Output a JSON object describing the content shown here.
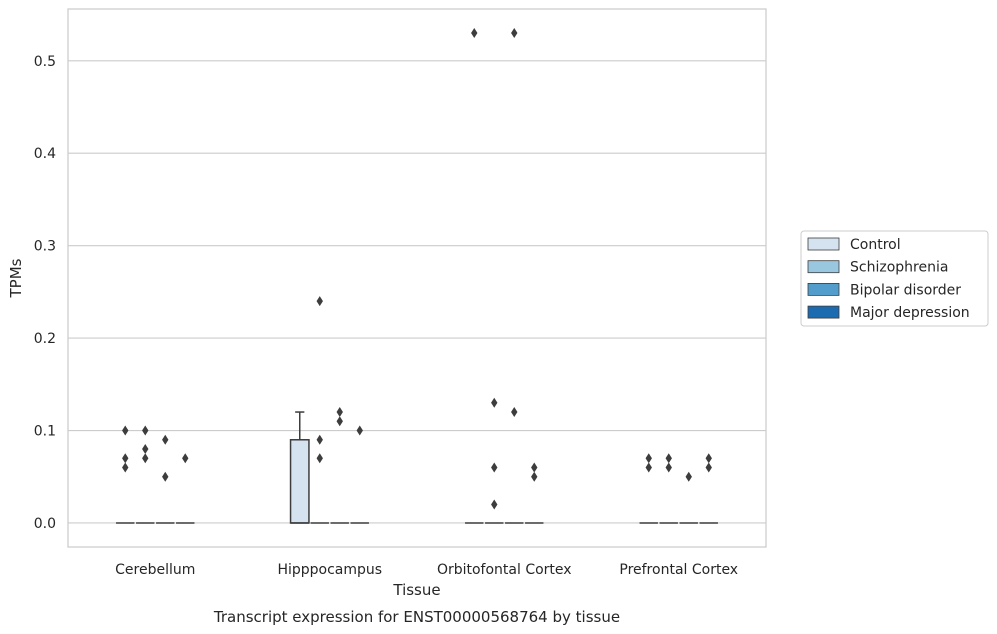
{
  "caption": "Transcript expression for ENST00000568764 by tissue",
  "chart_data": {
    "type": "box",
    "xlabel": "Tissue",
    "ylabel": "TPMs",
    "ylim": [
      -0.026,
      0.556
    ],
    "yticks": [
      0.0,
      0.1,
      0.2,
      0.3,
      0.4,
      0.5
    ],
    "ytick_labels": [
      "0.0",
      "0.1",
      "0.2",
      "0.3",
      "0.4",
      "0.5"
    ],
    "grid": true,
    "legend_position": "right",
    "categories": [
      "Cerebellum",
      "Hipppocampus",
      "Orbitofontal Cortex",
      "Prefrontal Cortex"
    ],
    "series": [
      {
        "name": "Control",
        "color": "#d5e3f1",
        "boxes": [
          {
            "category": "Cerebellum",
            "q1": 0,
            "median": 0,
            "q3": 0,
            "whisker_low": 0,
            "whisker_high": 0,
            "outliers": [
              0.06,
              0.07,
              0.1
            ]
          },
          {
            "category": "Hipppocampus",
            "q1": 0,
            "median": 0,
            "q3": 0.09,
            "whisker_low": 0,
            "whisker_high": 0.12,
            "outliers": []
          },
          {
            "category": "Orbitofontal Cortex",
            "q1": 0,
            "median": 0,
            "q3": 0,
            "whisker_low": 0,
            "whisker_high": 0,
            "outliers": [
              0.53
            ]
          },
          {
            "category": "Prefrontal Cortex",
            "q1": 0,
            "median": 0,
            "q3": 0,
            "whisker_low": 0,
            "whisker_high": 0,
            "outliers": [
              0.06,
              0.07
            ]
          }
        ]
      },
      {
        "name": "Schizophrenia",
        "color": "#9ac7e0",
        "boxes": [
          {
            "category": "Cerebellum",
            "q1": 0,
            "median": 0,
            "q3": 0,
            "whisker_low": 0,
            "whisker_high": 0,
            "outliers": [
              0.07,
              0.08,
              0.1
            ]
          },
          {
            "category": "Hipppocampus",
            "q1": 0,
            "median": 0,
            "q3": 0,
            "whisker_low": 0,
            "whisker_high": 0,
            "outliers": [
              0.07,
              0.09,
              0.24
            ]
          },
          {
            "category": "Orbitofontal Cortex",
            "q1": 0,
            "median": 0,
            "q3": 0,
            "whisker_low": 0,
            "whisker_high": 0,
            "outliers": [
              0.02,
              0.06,
              0.13
            ]
          },
          {
            "category": "Prefrontal Cortex",
            "q1": 0,
            "median": 0,
            "q3": 0,
            "whisker_low": 0,
            "whisker_high": 0,
            "outliers": [
              0.06,
              0.07
            ]
          }
        ]
      },
      {
        "name": "Bipolar disorder",
        "color": "#529dcc",
        "boxes": [
          {
            "category": "Cerebellum",
            "q1": 0,
            "median": 0,
            "q3": 0,
            "whisker_low": 0,
            "whisker_high": 0,
            "outliers": [
              0.05,
              0.09
            ]
          },
          {
            "category": "Hipppocampus",
            "q1": 0,
            "median": 0,
            "q3": 0,
            "whisker_low": 0,
            "whisker_high": 0,
            "outliers": [
              0.11,
              0.12
            ]
          },
          {
            "category": "Orbitofontal Cortex",
            "q1": 0,
            "median": 0,
            "q3": 0,
            "whisker_low": 0,
            "whisker_high": 0,
            "outliers": [
              0.12,
              0.53
            ]
          },
          {
            "category": "Prefrontal Cortex",
            "q1": 0,
            "median": 0,
            "q3": 0,
            "whisker_low": 0,
            "whisker_high": 0,
            "outliers": [
              0.05
            ]
          }
        ]
      },
      {
        "name": "Major depression",
        "color": "#1c6aaf",
        "boxes": [
          {
            "category": "Cerebellum",
            "q1": 0,
            "median": 0,
            "q3": 0,
            "whisker_low": 0,
            "whisker_high": 0,
            "outliers": [
              0.07
            ]
          },
          {
            "category": "Hipppocampus",
            "q1": 0,
            "median": 0,
            "q3": 0,
            "whisker_low": 0,
            "whisker_high": 0,
            "outliers": [
              0.1
            ]
          },
          {
            "category": "Orbitofontal Cortex",
            "q1": 0,
            "median": 0,
            "q3": 0,
            "whisker_low": 0,
            "whisker_high": 0,
            "outliers": [
              0.05,
              0.06
            ]
          },
          {
            "category": "Prefrontal Cortex",
            "q1": 0,
            "median": 0,
            "q3": 0,
            "whisker_low": 0,
            "whisker_high": 0,
            "outliers": [
              0.06,
              0.07
            ]
          }
        ]
      }
    ]
  }
}
